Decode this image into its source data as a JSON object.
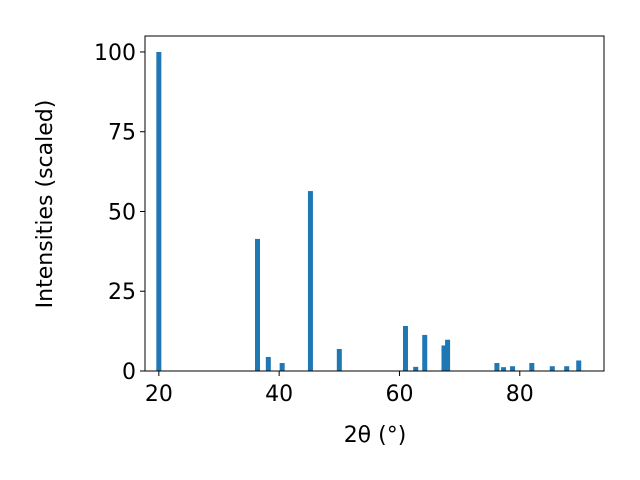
{
  "chart_data": {
    "type": "bar",
    "x_label": "2θ (°)",
    "y_label": "Intensities (scaled)",
    "x": [
      20,
      36.4,
      38.2,
      40.5,
      45.2,
      50.0,
      61.0,
      62.7,
      64.2,
      67.4,
      68.0,
      76.2,
      77.3,
      78.8,
      82.0,
      85.4,
      87.8,
      89.8
    ],
    "values": [
      100,
      41.4,
      4.4,
      2.5,
      56.4,
      6.9,
      14.1,
      1.3,
      11.3,
      8,
      9.8,
      2.5,
      1.2,
      1.5,
      2.5,
      1.5,
      1.5,
      3.3
    ],
    "color": "#1f77b4",
    "xlim": [
      17.7,
      94.0
    ],
    "xticks": [
      20,
      40,
      60,
      80
    ],
    "ylim": [
      0,
      105
    ],
    "yticks": [
      0,
      25,
      50,
      75,
      100
    ]
  }
}
